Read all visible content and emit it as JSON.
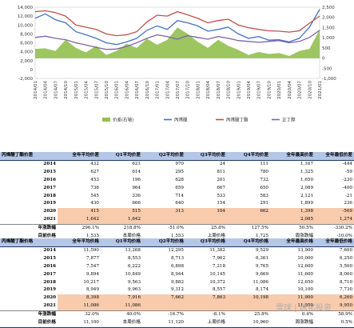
{
  "chart_data": {
    "type": "line",
    "x": [
      "2014/01",
      "2014/04",
      "2014/07",
      "2014/10",
      "2015/01",
      "2015/04",
      "2015/07",
      "2015/10",
      "2016/01",
      "2016/04",
      "2016/07",
      "2016/10",
      "2017/01",
      "2017/04",
      "2017/07",
      "2017/10",
      "2018/01",
      "2018/04",
      "2018/07",
      "2018/10",
      "2019/01",
      "2019/04",
      "2019/07",
      "2019/10",
      "2020/01",
      "2020/04",
      "2020/07",
      "2020/10",
      "2021/01"
    ],
    "x_ticks": [
      "2014/01",
      "2014/04",
      "2014/07",
      "2014/10",
      "2015/01",
      "2015/04",
      "2015/07",
      "2015/10",
      "2016/01",
      "2016/04",
      "2016/07",
      "2016/10",
      "2017/01",
      "2017/04",
      "2017/07",
      "2017/10",
      "2018/01",
      "2018/04",
      "2018/07",
      "2018/10",
      "2019/01",
      "2019/04",
      "2019/07",
      "2019/10",
      "2020/01",
      "2020/04",
      "2020/07",
      "2020/10",
      "2021/01"
    ],
    "y_left": [
      -2000,
      0,
      2000,
      4000,
      6000,
      8000,
      10000,
      12000,
      14000
    ],
    "y_right": [
      -1000,
      -500,
      0,
      500,
      1000,
      1500,
      2000,
      2500
    ],
    "ylim_left": [
      -2000,
      14000
    ],
    "ylim_right": [
      -1000,
      2500
    ],
    "series": [
      {
        "name": "价差(右轴)",
        "axis": "right",
        "kind": "area",
        "color": "#92c050",
        "values": [
          450,
          480,
          350,
          900,
          500,
          280,
          600,
          150,
          350,
          700,
          500,
          950,
          650,
          900,
          1500,
          1200,
          800,
          500,
          900,
          600,
          400,
          150,
          300,
          200,
          250,
          100,
          350,
          450,
          1400
        ]
      },
      {
        "name": "丙烯酸",
        "axis": "left",
        "kind": "line",
        "color": "#4472c4",
        "values": [
          11500,
          12500,
          11200,
          10500,
          8500,
          7800,
          7000,
          6000,
          5600,
          6200,
          7000,
          8800,
          9800,
          9000,
          11000,
          10500,
          9800,
          8600,
          9000,
          9500,
          8000,
          7000,
          7400,
          6600,
          6700,
          6200,
          7000,
          9500,
          13500
        ]
      },
      {
        "name": "丙烯酸丁酯",
        "axis": "left",
        "kind": "line",
        "color": "#c0504d",
        "values": [
          13000,
          13200,
          12800,
          12000,
          10000,
          9500,
          9000,
          8000,
          7600,
          7800,
          8500,
          10700,
          12200,
          12000,
          13000,
          12300,
          11500,
          10500,
          11000,
          11300,
          10000,
          9400,
          9000,
          8700,
          8600,
          8400,
          8700,
          10400,
          12000
        ]
      },
      {
        "name": "正丁醇",
        "axis": "left",
        "kind": "line",
        "color": "#7f63a8",
        "values": [
          7200,
          7500,
          7000,
          6700,
          6000,
          5500,
          5000,
          4500,
          4600,
          5200,
          6000,
          7000,
          7800,
          7400,
          6800,
          7600,
          7200,
          6800,
          7400,
          7000,
          6500,
          6300,
          6100,
          6300,
          6500,
          6000,
          6300,
          7200,
          8800
        ]
      }
    ]
  },
  "table1": {
    "headers": [
      "丙烯酸丁酯价差",
      "全年平均价差",
      "Q1平均价差",
      "Q2平均价差",
      "Q3平均价差",
      "Q4平均价差",
      "全年最高价差",
      "全年最低价差"
    ],
    "rows": [
      [
        "2014",
        "432",
        "621",
        "970",
        "24",
        "111",
        "1,167",
        "-444"
      ],
      [
        "2015",
        "627",
        "614",
        "295",
        "811",
        "780",
        "1,325",
        "-59"
      ],
      [
        "2016",
        "453",
        "196",
        "628",
        "201",
        "732",
        "1,650",
        "-230"
      ],
      [
        "2017",
        "736",
        "964",
        "659",
        "667",
        "650",
        "2,089",
        "-400"
      ],
      [
        "2018",
        "545",
        "336",
        "714",
        "533",
        "583",
        "2,121",
        "-21"
      ],
      [
        "2019",
        "430",
        "666",
        "640",
        "154",
        "291",
        "1,899",
        "236"
      ],
      [
        "2020",
        "415",
        "515",
        "313",
        "104",
        "662",
        "1,398",
        "-569"
      ],
      [
        "2021",
        "1,642",
        "1,642",
        "",
        "",
        "",
        "2,085",
        "1,274"
      ]
    ],
    "pct_row": [
      "年涨跌幅",
      "296.1%",
      "218.8%",
      "-51.0%",
      "25.8%",
      "127.5%",
      "50.5%",
      "-330.2%"
    ],
    "cur_row": [
      "目前价格",
      "1,535",
      "本周价格",
      "1,553",
      "上周价格",
      "1,725",
      "周涨跌幅",
      "-10.0%"
    ]
  },
  "table2": {
    "headers": [
      "丙烯酸丁酯价格",
      "全年平均价格",
      "Q1平均价格",
      "Q2平均价格",
      "Q3平均价格",
      "Q4平均价格",
      "全年最高价格",
      "全年最低价格"
    ],
    "rows": [
      [
        "2014",
        "11,590",
        "13,268",
        "12,295",
        "11,382",
        "9,529",
        "13,900",
        "7,600"
      ],
      [
        "2015",
        "7,877",
        "8,553",
        "8,713",
        "7,962",
        "6,361",
        "10,000",
        "6,250"
      ],
      [
        "2016",
        "7,547",
        "6,222",
        "6,898",
        "7,218",
        "9,765",
        "12,600",
        "5,500"
      ],
      [
        "2017",
        "9,894",
        "10,849",
        "8,944",
        "10,145",
        "9,669",
        "11,600",
        "8,000"
      ],
      [
        "2018",
        "10,217",
        "9,563",
        "9,882",
        "10,372",
        "11,086",
        "12,650",
        "8,710"
      ],
      [
        "2019",
        "8,949",
        "9,963",
        "9,312",
        "8,557",
        "8,174",
        "10,100",
        "7,730"
      ],
      [
        "2020",
        "8,398",
        "7,916",
        "7,662",
        "7,863",
        "10,198",
        "11,900",
        "6,260"
      ],
      [
        "2021",
        "11,086",
        "11,086",
        "",
        "",
        "",
        "11,950",
        "9,950"
      ]
    ],
    "pct_row": [
      "年涨跌幅",
      "32.0%",
      "40.0%",
      "-16.7%",
      "-8.1%",
      "25.8%",
      "0.4%",
      "58.9%"
    ],
    "cur_row": [
      "目前价格",
      "11,100",
      "本周价格",
      "11,120",
      "上周价格",
      "10,960",
      "周涨跌幅",
      "0.5%"
    ]
  },
  "watermark": "雪球 | 炼化投资"
}
